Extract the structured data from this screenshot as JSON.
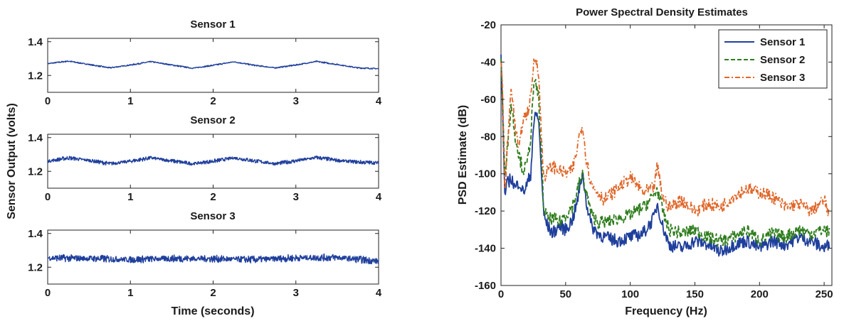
{
  "colors": {
    "sensor1": "#1f3f9c",
    "sensor2": "#2e7d1c",
    "sensor3": "#e0672a",
    "axis": "#222222"
  },
  "chart_data": [
    {
      "type": "line",
      "title": "Sensor 1",
      "xlabel": "",
      "ylabel": "Sensor Output (volts)",
      "xlim": [
        0,
        4
      ],
      "ylim": [
        1.1,
        1.42
      ],
      "xticks": [
        "0",
        "1",
        "2",
        "3",
        "4"
      ],
      "yticks": [
        "1.2",
        "1.4"
      ],
      "ytick_values": [
        1.2,
        1.4
      ],
      "grid": false,
      "series": [
        {
          "color_key": "sensor1",
          "baseline": 1.262,
          "amp_slow": 0.022,
          "freq_slow": 0.9,
          "noise": 0.004,
          "x": [
            0,
            0.25,
            0.5,
            0.75,
            1.0,
            1.25,
            1.5,
            1.75,
            2.0,
            2.25,
            2.5,
            2.75,
            3.0,
            3.25,
            3.5,
            3.75,
            4.0
          ],
          "y": [
            1.27,
            1.285,
            1.265,
            1.245,
            1.262,
            1.282,
            1.262,
            1.243,
            1.26,
            1.281,
            1.26,
            1.245,
            1.262,
            1.283,
            1.265,
            1.245,
            1.24
          ]
        }
      ]
    },
    {
      "type": "line",
      "title": "Sensor 2",
      "xlabel": "",
      "ylabel": "",
      "xlim": [
        0,
        4
      ],
      "ylim": [
        1.1,
        1.42
      ],
      "xticks": [
        "0",
        "1",
        "2",
        "3",
        "4"
      ],
      "yticks": [
        "1.2",
        "1.4"
      ],
      "ytick_values": [
        1.2,
        1.4
      ],
      "grid": false,
      "series": [
        {
          "color_key": "sensor1",
          "baseline": 1.262,
          "amp_slow": 0.02,
          "freq_slow": 0.9,
          "noise": 0.012,
          "x": [
            0,
            0.25,
            0.5,
            0.75,
            1.0,
            1.25,
            1.5,
            1.75,
            2.0,
            2.25,
            2.5,
            2.75,
            3.0,
            3.25,
            3.5,
            3.75,
            4.0
          ],
          "y": [
            1.26,
            1.28,
            1.265,
            1.245,
            1.26,
            1.28,
            1.262,
            1.245,
            1.26,
            1.28,
            1.262,
            1.245,
            1.262,
            1.282,
            1.265,
            1.255,
            1.25
          ]
        }
      ]
    },
    {
      "type": "line",
      "title": "Sensor 3",
      "xlabel": "Time (seconds)",
      "ylabel": "",
      "xlim": [
        0,
        4
      ],
      "ylim": [
        1.1,
        1.42
      ],
      "xticks": [
        "0",
        "1",
        "2",
        "3",
        "4"
      ],
      "yticks": [
        "1.2",
        "1.4"
      ],
      "ytick_values": [
        1.2,
        1.4
      ],
      "grid": false,
      "series": [
        {
          "color_key": "sensor1",
          "baseline": 1.252,
          "amp_slow": 0.01,
          "freq_slow": 0.9,
          "noise": 0.022,
          "x": [
            0,
            0.5,
            1.0,
            1.5,
            2.0,
            2.5,
            3.0,
            3.5,
            4.0
          ],
          "y": [
            1.255,
            1.252,
            1.245,
            1.252,
            1.25,
            1.245,
            1.255,
            1.258,
            1.235
          ]
        }
      ]
    },
    {
      "type": "line",
      "title": "Power Spectral Density Estimates",
      "xlabel": "Frequency (Hz)",
      "ylabel": "PSD Estimate (dB)",
      "xlim": [
        0,
        256
      ],
      "ylim": [
        -160,
        -20
      ],
      "xticks": [
        "0",
        "50",
        "100",
        "150",
        "200",
        "250"
      ],
      "xtick_values": [
        0,
        50,
        100,
        150,
        200,
        250
      ],
      "yticks": [
        "-20",
        "-40",
        "-60",
        "-80",
        "-100",
        "-120",
        "-140",
        "-160"
      ],
      "ytick_values": [
        -20,
        -40,
        -60,
        -80,
        -100,
        -120,
        -140,
        -160
      ],
      "grid": false,
      "legend": "top-right",
      "series": [
        {
          "name": "Sensor 1",
          "color_key": "sensor1",
          "dash": "solid",
          "x": [
            0,
            1,
            3,
            5,
            8,
            11,
            14,
            17,
            20,
            23,
            25,
            27,
            29,
            31,
            33,
            36,
            40,
            45,
            50,
            55,
            58,
            61,
            63,
            66,
            70,
            75,
            80,
            90,
            100,
            110,
            118,
            121,
            125,
            130,
            140,
            150,
            160,
            170,
            180,
            190,
            200,
            210,
            220,
            230,
            240,
            250,
            254
          ],
          "y": [
            -36,
            -60,
            -112,
            -105,
            -102,
            -108,
            -104,
            -110,
            -106,
            -100,
            -75,
            -68,
            -70,
            -95,
            -122,
            -128,
            -132,
            -128,
            -130,
            -125,
            -118,
            -108,
            -99,
            -115,
            -128,
            -132,
            -134,
            -136,
            -134,
            -132,
            -124,
            -116,
            -128,
            -138,
            -140,
            -136,
            -138,
            -142,
            -138,
            -136,
            -140,
            -136,
            -138,
            -134,
            -136,
            -140,
            -138
          ]
        },
        {
          "name": "Sensor 2",
          "color_key": "sensor2",
          "dash": "dashed",
          "x": [
            0,
            1,
            3,
            5,
            8,
            11,
            14,
            17,
            20,
            23,
            25,
            27,
            29,
            31,
            33,
            36,
            40,
            45,
            50,
            55,
            58,
            61,
            63,
            66,
            70,
            75,
            80,
            90,
            100,
            110,
            118,
            121,
            125,
            130,
            140,
            150,
            160,
            170,
            180,
            190,
            200,
            210,
            220,
            230,
            240,
            250,
            254
          ],
          "y": [
            -38,
            -55,
            -100,
            -85,
            -62,
            -80,
            -90,
            -98,
            -96,
            -80,
            -55,
            -52,
            -58,
            -88,
            -118,
            -124,
            -124,
            -126,
            -122,
            -118,
            -112,
            -104,
            -101,
            -110,
            -122,
            -126,
            -126,
            -124,
            -122,
            -118,
            -112,
            -108,
            -120,
            -130,
            -132,
            -130,
            -134,
            -136,
            -134,
            -130,
            -136,
            -132,
            -134,
            -130,
            -132,
            -130,
            -132
          ]
        },
        {
          "name": "Sensor 3",
          "color_key": "sensor3",
          "dash": "dashdot",
          "x": [
            0,
            1,
            3,
            5,
            8,
            11,
            14,
            17,
            20,
            23,
            25,
            27,
            29,
            31,
            33,
            36,
            40,
            45,
            50,
            55,
            58,
            61,
            63,
            66,
            70,
            75,
            80,
            90,
            100,
            110,
            118,
            121,
            125,
            130,
            140,
            150,
            160,
            170,
            180,
            190,
            200,
            210,
            220,
            230,
            240,
            250,
            254
          ],
          "y": [
            -40,
            -50,
            -110,
            -85,
            -52,
            -75,
            -88,
            -70,
            -68,
            -60,
            -42,
            -37,
            -44,
            -76,
            -102,
            -98,
            -96,
            -98,
            -100,
            -98,
            -90,
            -78,
            -73,
            -92,
            -106,
            -110,
            -114,
            -108,
            -102,
            -110,
            -108,
            -96,
            -112,
            -118,
            -114,
            -120,
            -116,
            -118,
            -112,
            -108,
            -110,
            -112,
            -118,
            -116,
            -120,
            -114,
            -122
          ]
        }
      ]
    }
  ]
}
